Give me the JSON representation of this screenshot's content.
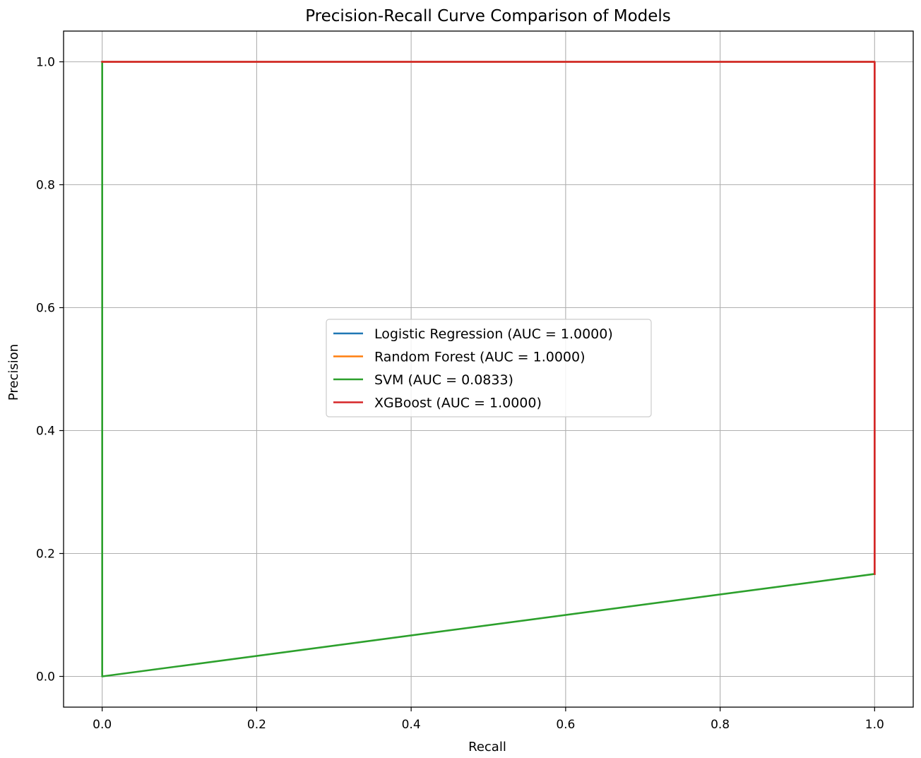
{
  "chart_data": {
    "type": "line",
    "title": "Precision-Recall Curve Comparison of Models",
    "xlabel": "Recall",
    "ylabel": "Precision",
    "xlim": [
      -0.05,
      1.05
    ],
    "ylim": [
      -0.05,
      1.05
    ],
    "xticks": [
      0.0,
      0.2,
      0.4,
      0.6,
      0.8,
      1.0
    ],
    "xtick_labels": [
      "0.0",
      "0.2",
      "0.4",
      "0.6",
      "0.8",
      "1.0"
    ],
    "yticks": [
      0.0,
      0.2,
      0.4,
      0.6,
      0.8,
      1.0
    ],
    "ytick_labels": [
      "0.0",
      "0.2",
      "0.4",
      "0.6",
      "0.8",
      "1.0"
    ],
    "grid": true,
    "legend_position": "center",
    "series": [
      {
        "name": "Logistic Regression (AUC = 1.0000)",
        "color": "#1f77b4",
        "points": [
          [
            0.0,
            1.0
          ],
          [
            1.0,
            1.0
          ],
          [
            1.0,
            0.1667
          ]
        ]
      },
      {
        "name": "Random Forest (AUC = 1.0000)",
        "color": "#ff7f0e",
        "points": [
          [
            0.0,
            1.0
          ],
          [
            1.0,
            1.0
          ],
          [
            1.0,
            0.1667
          ]
        ]
      },
      {
        "name": "SVM (AUC = 0.0833)",
        "color": "#2ca02c",
        "points": [
          [
            0.0,
            1.0
          ],
          [
            0.0,
            0.0
          ],
          [
            1.0,
            0.1667
          ]
        ]
      },
      {
        "name": "XGBoost (AUC = 1.0000)",
        "color": "#d62728",
        "points": [
          [
            0.0,
            1.0
          ],
          [
            1.0,
            1.0
          ],
          [
            1.0,
            0.1667
          ]
        ]
      }
    ]
  }
}
